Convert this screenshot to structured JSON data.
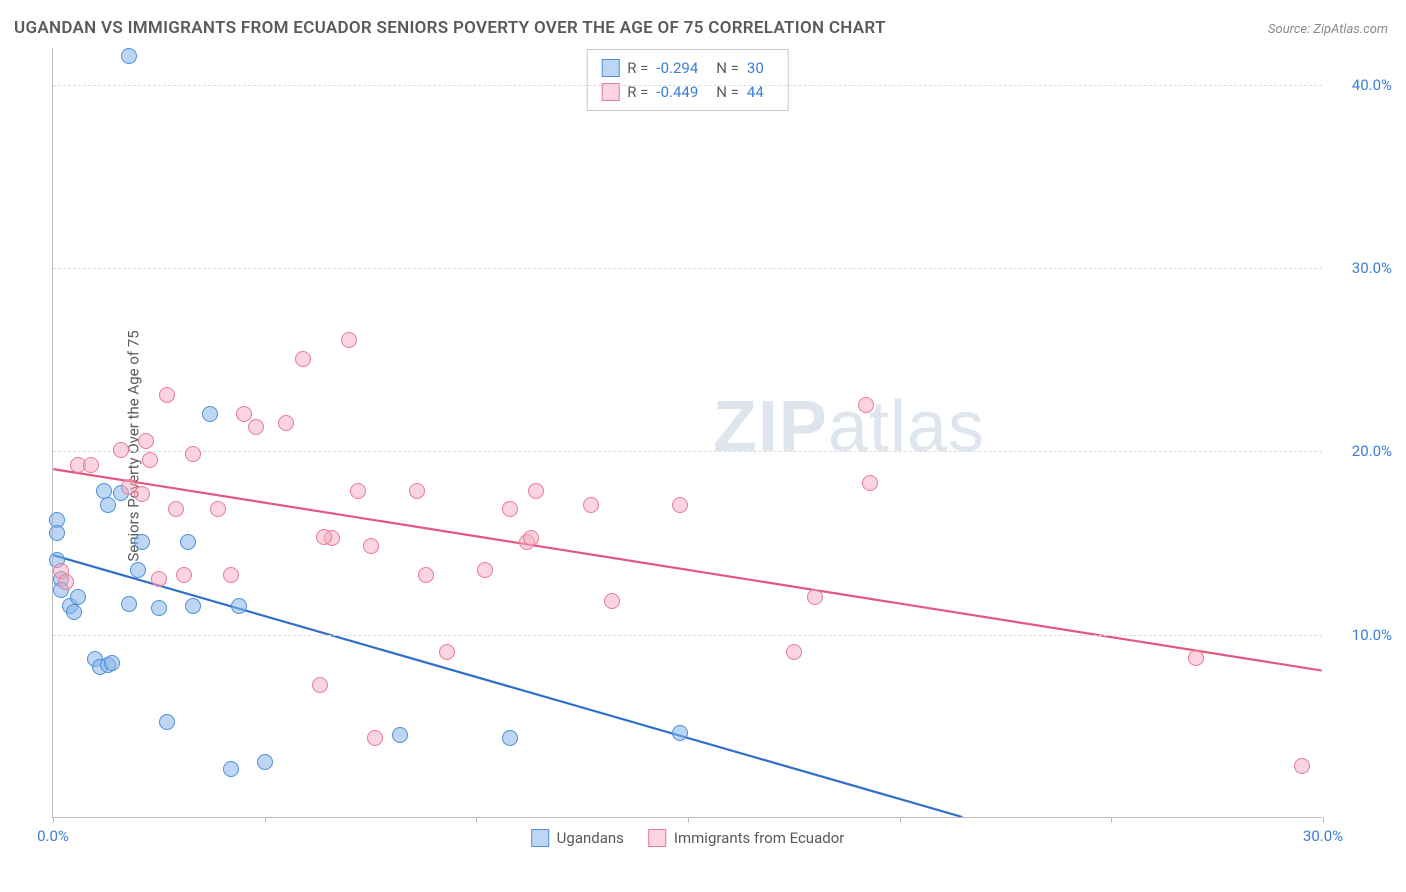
{
  "title": "UGANDAN VS IMMIGRANTS FROM ECUADOR SENIORS POVERTY OVER THE AGE OF 75 CORRELATION CHART",
  "source": "Source: ZipAtlas.com",
  "y_axis_label": "Seniors Poverty Over the Age of 75",
  "watermark": {
    "bold": "ZIP",
    "light": "atlas"
  },
  "chart": {
    "type": "scatter",
    "background_color": "#ffffff",
    "grid_color": "#dcdcdc",
    "axis_color": "#bdbdbd",
    "tick_label_color": "#3b7dd8",
    "title_color": "#5a5a5a",
    "title_fontsize": 17,
    "label_fontsize": 15,
    "tick_fontsize": 15,
    "xlim": [
      0,
      30
    ],
    "ylim": [
      0,
      42
    ],
    "y_gridlines": [
      10,
      20,
      30,
      40
    ],
    "y_tick_labels": [
      "10.0%",
      "20.0%",
      "30.0%",
      "40.0%"
    ],
    "x_ticks": [
      0,
      5,
      10,
      15,
      20,
      25,
      30
    ],
    "x_tick_labels": {
      "0": "0.0%",
      "30": "30.0%"
    },
    "marker_size": 16,
    "series": [
      {
        "name": "Ugandans",
        "color_fill": "rgba(133,180,234,0.55)",
        "color_stroke": "#4f8fd9",
        "trend_color": "#2f6fc9",
        "trend_width": 2.2,
        "trend": {
          "x1": 0,
          "y1": 14.3,
          "x2": 21.5,
          "y2": 0
        },
        "R": "-0.294",
        "N": "30",
        "points": [
          [
            0.1,
            16.2
          ],
          [
            0.1,
            15.5
          ],
          [
            0.1,
            14.0
          ],
          [
            0.2,
            13.0
          ],
          [
            0.2,
            12.4
          ],
          [
            0.4,
            11.5
          ],
          [
            0.5,
            11.2
          ],
          [
            0.6,
            12.0
          ],
          [
            1.0,
            8.6
          ],
          [
            1.1,
            8.2
          ],
          [
            1.3,
            8.3
          ],
          [
            1.4,
            8.4
          ],
          [
            1.8,
            11.6
          ],
          [
            1.2,
            17.8
          ],
          [
            1.3,
            17.0
          ],
          [
            1.6,
            17.7
          ],
          [
            1.8,
            41.5
          ],
          [
            2.0,
            13.5
          ],
          [
            2.1,
            15.0
          ],
          [
            2.5,
            11.4
          ],
          [
            2.7,
            5.2
          ],
          [
            3.2,
            15.0
          ],
          [
            3.3,
            11.5
          ],
          [
            3.7,
            22.0
          ],
          [
            4.2,
            2.6
          ],
          [
            4.4,
            11.5
          ],
          [
            5.0,
            3.0
          ],
          [
            8.2,
            4.5
          ],
          [
            10.8,
            4.3
          ],
          [
            14.8,
            4.6
          ]
        ]
      },
      {
        "name": "Immigrants from Ecuador",
        "color_fill": "rgba(245,170,190,0.5)",
        "color_stroke": "#e77b9a",
        "trend_color": "#e4577e",
        "trend_width": 2.2,
        "trend": {
          "x1": 0,
          "y1": 19.0,
          "x2": 30,
          "y2": 8.0
        },
        "R": "-0.449",
        "N": "44",
        "points": [
          [
            0.2,
            13.4
          ],
          [
            0.3,
            12.8
          ],
          [
            0.6,
            19.2
          ],
          [
            0.9,
            19.2
          ],
          [
            1.6,
            20.0
          ],
          [
            1.8,
            18.0
          ],
          [
            2.1,
            17.6
          ],
          [
            2.2,
            20.5
          ],
          [
            2.3,
            19.5
          ],
          [
            2.5,
            13.0
          ],
          [
            2.7,
            23.0
          ],
          [
            2.9,
            16.8
          ],
          [
            3.1,
            13.2
          ],
          [
            3.3,
            19.8
          ],
          [
            3.9,
            16.8
          ],
          [
            4.2,
            13.2
          ],
          [
            4.5,
            22.0
          ],
          [
            4.8,
            21.3
          ],
          [
            5.5,
            21.5
          ],
          [
            5.9,
            25.0
          ],
          [
            6.3,
            7.2
          ],
          [
            6.6,
            15.2
          ],
          [
            7.0,
            26.0
          ],
          [
            7.2,
            17.8
          ],
          [
            7.5,
            14.8
          ],
          [
            7.6,
            4.3
          ],
          [
            8.6,
            17.8
          ],
          [
            8.8,
            13.2
          ],
          [
            9.3,
            9.0
          ],
          [
            10.2,
            13.5
          ],
          [
            10.8,
            16.8
          ],
          [
            11.2,
            15.0
          ],
          [
            11.3,
            15.2
          ],
          [
            11.4,
            17.8
          ],
          [
            12.7,
            17.0
          ],
          [
            13.2,
            11.8
          ],
          [
            14.8,
            17.0
          ],
          [
            17.5,
            9.0
          ],
          [
            18.0,
            12.0
          ],
          [
            19.2,
            22.5
          ],
          [
            19.3,
            18.2
          ],
          [
            27.0,
            8.7
          ],
          [
            29.5,
            2.8
          ],
          [
            6.4,
            15.3
          ]
        ]
      }
    ]
  },
  "stats_box": {
    "rows": [
      {
        "swatch": "blue",
        "R_label": "R =",
        "R_val": "-0.294",
        "N_label": "N =",
        "N_val": "30"
      },
      {
        "swatch": "pink",
        "R_label": "R =",
        "R_val": "-0.449",
        "N_label": "N =",
        "N_val": "44"
      }
    ]
  },
  "legend": [
    {
      "swatch": "blue",
      "label": "Ugandans"
    },
    {
      "swatch": "pink",
      "label": "Immigrants from Ecuador"
    }
  ]
}
